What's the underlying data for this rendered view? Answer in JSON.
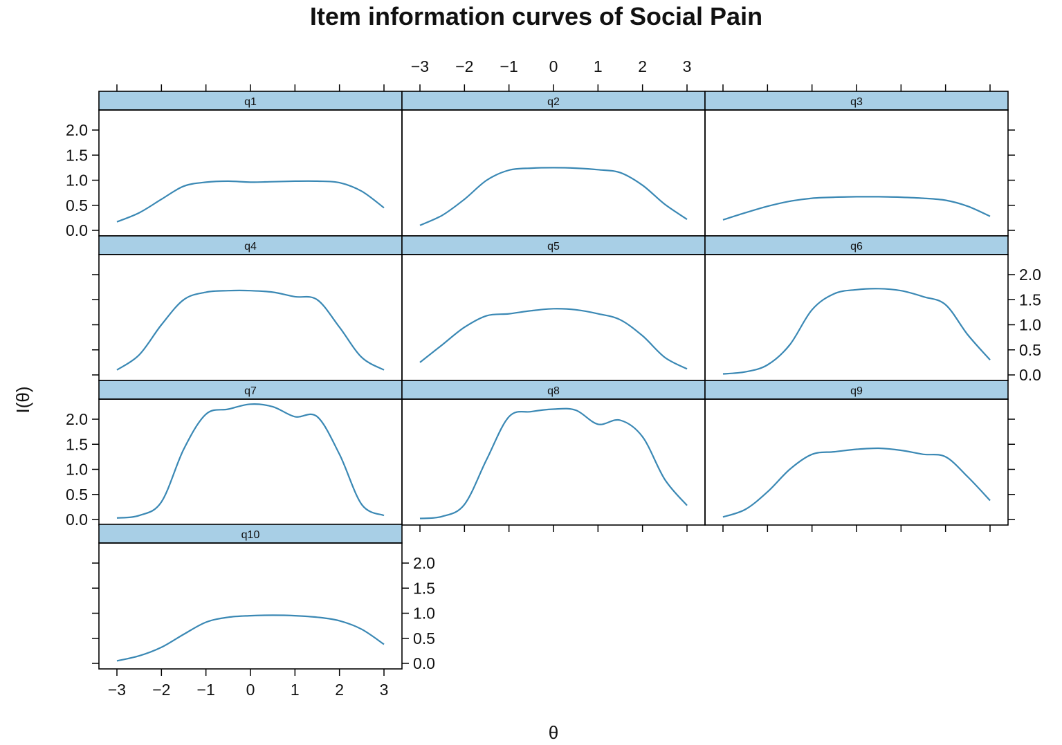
{
  "chart_data": {
    "type": "line",
    "title": "Item information curves of Social Pain",
    "xlabel": "θ",
    "ylabel": "I(θ)",
    "xlim": [
      -3,
      3
    ],
    "ylim": [
      0,
      2.4
    ],
    "x_ticks": [
      -3,
      -2,
      -1,
      0,
      1,
      2,
      3
    ],
    "x_tick_labels": [
      "−3",
      "−2",
      "−1",
      "0",
      "1",
      "2",
      "3"
    ],
    "y_ticks": [
      0,
      0.5,
      1,
      1.5,
      2
    ],
    "y_tick_labels": [
      "0.0",
      "0.5",
      "1.0",
      "1.5",
      "2.0"
    ],
    "line_color": "#3a88b4",
    "strip_color": "#a8cfe6",
    "grid": false,
    "legend": "none",
    "x": [
      -3,
      -2.5,
      -2,
      -1.5,
      -1,
      -0.5,
      0,
      0.5,
      1,
      1.5,
      2,
      2.5,
      3
    ],
    "series": [
      {
        "name": "q1",
        "values": [
          0.17,
          0.35,
          0.62,
          0.88,
          0.96,
          0.98,
          0.96,
          0.97,
          0.98,
          0.98,
          0.95,
          0.78,
          0.45
        ]
      },
      {
        "name": "q2",
        "values": [
          0.1,
          0.3,
          0.62,
          1.0,
          1.2,
          1.24,
          1.25,
          1.24,
          1.21,
          1.15,
          0.9,
          0.52,
          0.22
        ]
      },
      {
        "name": "q3",
        "values": [
          0.21,
          0.35,
          0.48,
          0.58,
          0.64,
          0.66,
          0.67,
          0.67,
          0.66,
          0.64,
          0.6,
          0.48,
          0.28
        ]
      },
      {
        "name": "q4",
        "values": [
          0.1,
          0.4,
          1.0,
          1.5,
          1.65,
          1.68,
          1.68,
          1.65,
          1.56,
          1.5,
          0.95,
          0.35,
          0.1
        ]
      },
      {
        "name": "q5",
        "values": [
          0.25,
          0.6,
          0.95,
          1.18,
          1.22,
          1.28,
          1.32,
          1.3,
          1.22,
          1.1,
          0.78,
          0.35,
          0.12
        ]
      },
      {
        "name": "q6",
        "values": [
          0.02,
          0.06,
          0.2,
          0.6,
          1.3,
          1.62,
          1.7,
          1.72,
          1.68,
          1.56,
          1.4,
          0.8,
          0.3
        ]
      },
      {
        "name": "q7",
        "values": [
          0.03,
          0.08,
          0.35,
          1.4,
          2.1,
          2.2,
          2.3,
          2.25,
          2.05,
          2.05,
          1.3,
          0.3,
          0.08
        ]
      },
      {
        "name": "q8",
        "values": [
          0.02,
          0.06,
          0.3,
          1.2,
          2.05,
          2.15,
          2.2,
          2.18,
          1.9,
          1.98,
          1.65,
          0.8,
          0.28
        ]
      },
      {
        "name": "q9",
        "values": [
          0.05,
          0.2,
          0.55,
          1.0,
          1.3,
          1.35,
          1.4,
          1.42,
          1.38,
          1.3,
          1.25,
          0.85,
          0.38
        ]
      },
      {
        "name": "q10",
        "values": [
          0.05,
          0.15,
          0.32,
          0.58,
          0.82,
          0.92,
          0.95,
          0.96,
          0.95,
          0.92,
          0.85,
          0.68,
          0.38
        ]
      }
    ]
  }
}
